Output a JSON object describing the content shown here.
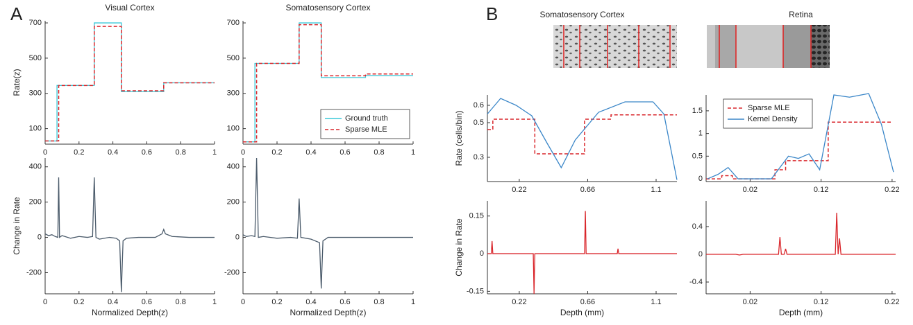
{
  "chart_data": [
    {
      "type": "line",
      "panel_label": "A",
      "title": "Visual Cortex",
      "ylabel": "Rate(z)",
      "xlim": [
        0,
        1
      ],
      "ylim": [
        12,
        712
      ],
      "xticks": [
        0,
        0.2,
        0.4,
        0.6,
        0.8,
        1
      ],
      "yticks": [
        100,
        300,
        500,
        700
      ],
      "series": [
        {
          "color": "#38c8d8",
          "x": [
            0,
            0.07,
            0.07,
            0.29,
            0.29,
            0.45,
            0.45,
            0.7,
            0.7,
            1
          ],
          "values": [
            30,
            30,
            345,
            345,
            700,
            700,
            310,
            310,
            360,
            360
          ]
        },
        {
          "color": "#d9262b",
          "dash": true,
          "x": [
            0,
            0.08,
            0.08,
            0.29,
            0.29,
            0.45,
            0.45,
            0.7,
            0.7,
            1
          ],
          "values": [
            30,
            30,
            345,
            345,
            680,
            680,
            315,
            315,
            360,
            360
          ]
        }
      ]
    },
    {
      "type": "line",
      "title": "Somatosensory Cortex",
      "legend": "lower right",
      "xlim": [
        0,
        1
      ],
      "ylim": [
        12,
        712
      ],
      "xticks": [
        0,
        0.2,
        0.4,
        0.6,
        0.8,
        1
      ],
      "yticks": [
        100,
        300,
        500,
        700
      ],
      "series": [
        {
          "name": "Ground truth",
          "color": "#38c8d8",
          "x": [
            0,
            0.07,
            0.07,
            0.33,
            0.33,
            0.46,
            0.46,
            0.72,
            0.72,
            1
          ],
          "values": [
            25,
            25,
            470,
            470,
            700,
            700,
            390,
            390,
            400,
            400
          ]
        },
        {
          "name": "Sparse MLE",
          "color": "#d9262b",
          "dash": true,
          "x": [
            0,
            0.08,
            0.08,
            0.33,
            0.33,
            0.46,
            0.46,
            0.72,
            0.72,
            1
          ],
          "values": [
            25,
            25,
            470,
            470,
            690,
            690,
            400,
            400,
            410,
            410
          ]
        }
      ]
    },
    {
      "type": "line",
      "ylabel": "Change in Rate",
      "xlabel": "Normalized Depth(z)",
      "xlim": [
        0,
        1
      ],
      "ylim": [
        -320,
        450
      ],
      "xticks": [
        0,
        0.2,
        0.4,
        0.6,
        0.8,
        1
      ],
      "yticks": [
        -200,
        0,
        200,
        400
      ],
      "series": [
        {
          "color": "#4a5a6a",
          "x": [
            0,
            0.02,
            0.04,
            0.06,
            0.075,
            0.08,
            0.085,
            0.1,
            0.15,
            0.2,
            0.25,
            0.28,
            0.29,
            0.3,
            0.32,
            0.38,
            0.42,
            0.44,
            0.45,
            0.46,
            0.48,
            0.55,
            0.65,
            0.69,
            0.7,
            0.71,
            0.75,
            0.85,
            1
          ],
          "values": [
            20,
            10,
            15,
            5,
            0,
            340,
            0,
            10,
            -5,
            5,
            0,
            5,
            340,
            0,
            -10,
            0,
            -5,
            -20,
            -310,
            -20,
            -5,
            0,
            0,
            20,
            45,
            20,
            5,
            0,
            0
          ]
        }
      ]
    },
    {
      "type": "line",
      "xlabel": "Normalized Depth(z)",
      "xlim": [
        0,
        1
      ],
      "ylim": [
        -320,
        450
      ],
      "xticks": [
        0,
        0.2,
        0.4,
        0.6,
        0.8,
        1
      ],
      "yticks": [
        -200,
        0,
        200,
        400
      ],
      "series": [
        {
          "color": "#4a5a6a",
          "x": [
            0,
            0.02,
            0.05,
            0.07,
            0.08,
            0.09,
            0.12,
            0.2,
            0.28,
            0.32,
            0.33,
            0.34,
            0.4,
            0.45,
            0.46,
            0.47,
            0.5,
            0.6,
            0.75,
            1
          ],
          "values": [
            15,
            5,
            10,
            5,
            450,
            0,
            5,
            -5,
            0,
            -5,
            220,
            0,
            -10,
            -30,
            -290,
            -20,
            0,
            0,
            0,
            0
          ]
        }
      ]
    },
    {
      "type": "line",
      "panel_label": "B",
      "title": "Somatosensory Cortex",
      "ylabel": "Rate (cells/bin)",
      "xlim": [
        0.015,
        1.234
      ],
      "ylim": [
        0.16,
        0.66
      ],
      "xticks": [
        0.22,
        0.66,
        1.1
      ],
      "yticks": [
        0.3,
        0.5,
        0.6
      ],
      "series": [
        {
          "color": "#d9262b",
          "dash": true,
          "x": [
            0.015,
            0.05,
            0.05,
            0.32,
            0.32,
            0.64,
            0.64,
            0.81,
            0.81,
            1.234
          ],
          "values": [
            0.46,
            0.46,
            0.52,
            0.52,
            0.32,
            0.32,
            0.52,
            0.52,
            0.545,
            0.545
          ]
        },
        {
          "color": "#3a86c8",
          "x": [
            0.015,
            0.1,
            0.2,
            0.3,
            0.4,
            0.49,
            0.58,
            0.73,
            0.9,
            1.08,
            1.15,
            1.234
          ],
          "values": [
            0.55,
            0.64,
            0.6,
            0.54,
            0.38,
            0.24,
            0.4,
            0.56,
            0.62,
            0.62,
            0.55,
            0.17
          ]
        }
      ]
    },
    {
      "type": "line",
      "title": "Retina",
      "legend": "upper left",
      "xlim": [
        -0.042,
        0.225
      ],
      "ylim": [
        -0.06,
        1.85
      ],
      "xticks": [
        0.02,
        0.12,
        0.22
      ],
      "yticks": [
        0,
        0.5,
        1,
        1.5
      ],
      "series": [
        {
          "name": "Sparse MLE",
          "color": "#d9262b",
          "dash": true,
          "x": [
            -0.042,
            -0.02,
            -0.02,
            -0.005,
            -0.005,
            0.055,
            0.055,
            0.07,
            0.07,
            0.13,
            0.13,
            0.22
          ],
          "values": [
            0,
            0,
            0.07,
            0.07,
            0,
            0,
            0.2,
            0.2,
            0.4,
            0.4,
            1.25,
            1.25
          ]
        },
        {
          "name": "Kernel Density",
          "color": "#3a86c8",
          "x": [
            -0.04,
            -0.025,
            -0.011,
            0.003,
            0.05,
            0.074,
            0.088,
            0.103,
            0.118,
            0.138,
            0.16,
            0.187,
            0.205,
            0.222
          ],
          "values": [
            0,
            0.1,
            0.25,
            0,
            0,
            0.5,
            0.45,
            0.55,
            0.2,
            1.85,
            1.8,
            1.88,
            1.2,
            0.15
          ]
        }
      ]
    },
    {
      "type": "line",
      "ylabel": "Change in Rate",
      "xlabel": "Depth (mm)",
      "xlim": [
        0.015,
        1.234
      ],
      "ylim": [
        -0.16,
        0.21
      ],
      "xticks": [
        0.22,
        0.66,
        1.1
      ],
      "yticks": [
        -0.15,
        0,
        0.15
      ],
      "series": [
        {
          "color": "#d9262b",
          "x": [
            0.015,
            0.04,
            0.045,
            0.05,
            0.31,
            0.315,
            0.32,
            0.64,
            0.645,
            0.65,
            0.85,
            0.855,
            0.86,
            1.234
          ],
          "values": [
            0,
            0,
            0.05,
            0,
            0,
            -0.16,
            0,
            0,
            0.17,
            0,
            0,
            0.02,
            0,
            0
          ]
        }
      ]
    },
    {
      "type": "line",
      "xlabel": "Depth (mm)",
      "xlim": [
        -0.042,
        0.225
      ],
      "ylim": [
        -0.57,
        0.77
      ],
      "xticks": [
        0.02,
        0.12,
        0.22
      ],
      "yticks": [
        -0.4,
        0,
        0.4
      ],
      "series": [
        {
          "color": "#d9262b",
          "x": [
            -0.042,
            0.0,
            0.005,
            0.01,
            0.06,
            0.062,
            0.064,
            0.068,
            0.07,
            0.072,
            0.14,
            0.142,
            0.144,
            0.146,
            0.148,
            0.225
          ],
          "values": [
            0,
            0,
            -0.01,
            0,
            0,
            0.25,
            0,
            0,
            0.08,
            0,
            0,
            0.6,
            0,
            0.23,
            0,
            0
          ]
        }
      ]
    }
  ]
}
